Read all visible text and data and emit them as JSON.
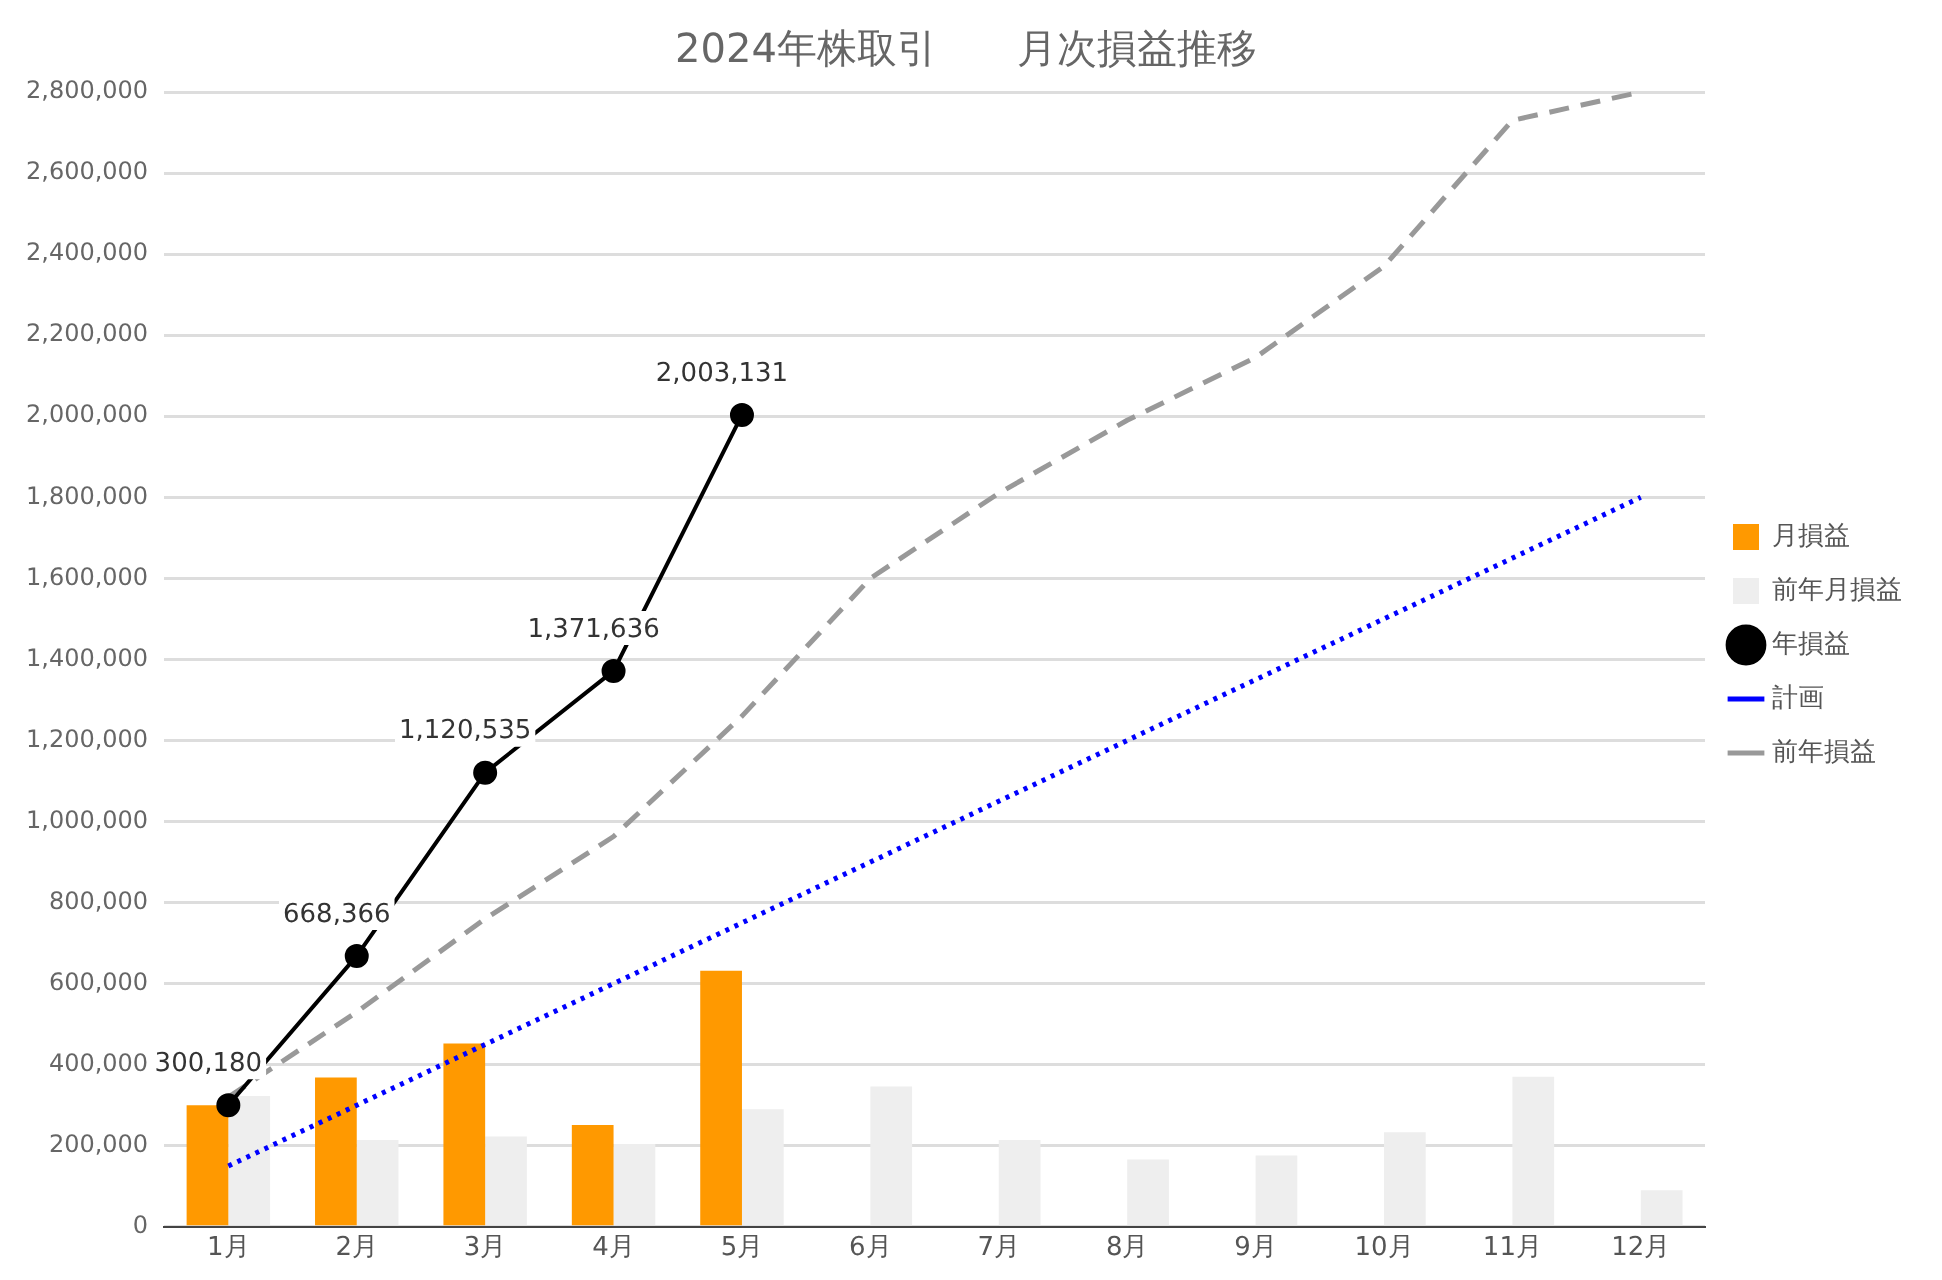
{
  "chart_data": {
    "type": "bar",
    "title": "2024年株取引　　月次損益推移",
    "categories": [
      "1月",
      "2月",
      "3月",
      "4月",
      "5月",
      "6月",
      "7月",
      "8月",
      "9月",
      "10月",
      "11月",
      "12月"
    ],
    "series": [
      {
        "name": "月損益",
        "color": "#ff9900",
        "values": [
          300180,
          368186,
          452169,
          251101,
          631495,
          null,
          null,
          null,
          null,
          null,
          null,
          null
        ]
      },
      {
        "name": "前年月損益",
        "color": "#eeeeee",
        "values": [
          323000,
          214000,
          223000,
          204000,
          290000,
          346000,
          214000,
          166000,
          176000,
          233000,
          370000,
          90000
        ]
      },
      {
        "name": "年損益",
        "type": "line",
        "color": "#000000",
        "marker": "circle",
        "line_style": "solid",
        "values": [
          300180,
          668366,
          1120535,
          1371636,
          2003131,
          null,
          null,
          null,
          null,
          null,
          null,
          null
        ],
        "value_labels": [
          "300,180",
          "668,366",
          "1,120,535",
          "1,371,636",
          "2,003,131",
          null,
          null,
          null,
          null,
          null,
          null,
          null
        ]
      },
      {
        "name": "計画",
        "type": "line",
        "color": "#0000ff",
        "marker": "none",
        "line_style": "dotted",
        "values": [
          150000,
          300000,
          450000,
          600000,
          750000,
          900000,
          1050000,
          1200000,
          1350000,
          1500000,
          1650000,
          1800000
        ]
      },
      {
        "name": "前年損益",
        "type": "line",
        "color": "#999999",
        "marker": "none",
        "line_style": "dashed",
        "values": [
          320000,
          530000,
          760000,
          963000,
          1260000,
          1600000,
          1810000,
          1990000,
          2145000,
          2370000,
          2730000,
          2800000
        ]
      }
    ],
    "ylim": [
      0,
      2800000
    ],
    "yticks": [
      0,
      {
        "value": 200000,
        "label": "200,000"
      },
      {
        "value": 400000,
        "label": "400,000"
      },
      {
        "value": 600000,
        "label": "600,000"
      },
      {
        "value": 800000,
        "label": "800,000"
      },
      {
        "value": 1000000,
        "label": "1,000,000"
      },
      {
        "value": 1200000,
        "label": "1,200,000"
      },
      {
        "value": 1400000,
        "label": "1,400,000"
      },
      {
        "value": 1600000,
        "label": "1,600,000"
      },
      {
        "value": 1800000,
        "label": "1,800,000"
      },
      {
        "value": 2000000,
        "label": "2,000,000"
      },
      {
        "value": 2200000,
        "label": "2,200,000"
      },
      {
        "value": 2400000,
        "label": "2,400,000"
      },
      {
        "value": 2600000,
        "label": "2,600,000"
      },
      {
        "value": 2800000,
        "label": "2,800,000"
      }
    ],
    "grid": "y",
    "legend": "right"
  }
}
